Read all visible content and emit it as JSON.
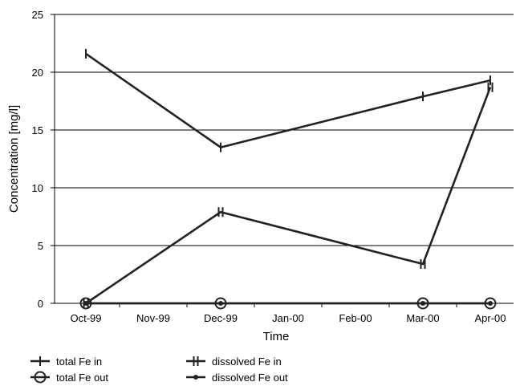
{
  "chart_data": {
    "type": "line",
    "xlabel": "Time",
    "ylabel": "Concentration [mg/l]",
    "categories": [
      "Oct-99",
      "Nov-99",
      "Dec-99",
      "Jan-00",
      "Feb-00",
      "Mar-00",
      "Apr-00"
    ],
    "ylim": [
      0,
      25
    ],
    "yticks": [
      0,
      5,
      10,
      15,
      20,
      25
    ],
    "grid": true,
    "legend_position": "bottom-left",
    "series": [
      {
        "name": "total Fe in",
        "marker": "plus",
        "points": [
          [
            "Oct-99",
            21.6
          ],
          [
            "Dec-99",
            13.5
          ],
          [
            "Mar-00",
            17.9
          ],
          [
            "Apr-00",
            19.3
          ]
        ]
      },
      {
        "name": "dissolved Fe in",
        "marker": "double-plus",
        "points": [
          [
            "Oct-99",
            0.0
          ],
          [
            "Dec-99",
            7.9
          ],
          [
            "Mar-00",
            3.4
          ],
          [
            "Apr-00",
            18.7
          ]
        ]
      },
      {
        "name": "total Fe out",
        "marker": "circle",
        "points": [
          [
            "Oct-99",
            0.0
          ],
          [
            "Dec-99",
            0.0
          ],
          [
            "Mar-00",
            0.0
          ],
          [
            "Apr-00",
            0.0
          ]
        ]
      },
      {
        "name": "dissolved Fe out",
        "marker": "dot",
        "points": [
          [
            "Oct-99",
            0.0
          ],
          [
            "Dec-99",
            0.0
          ],
          [
            "Mar-00",
            0.0
          ],
          [
            "Apr-00",
            0.0
          ]
        ]
      }
    ]
  }
}
